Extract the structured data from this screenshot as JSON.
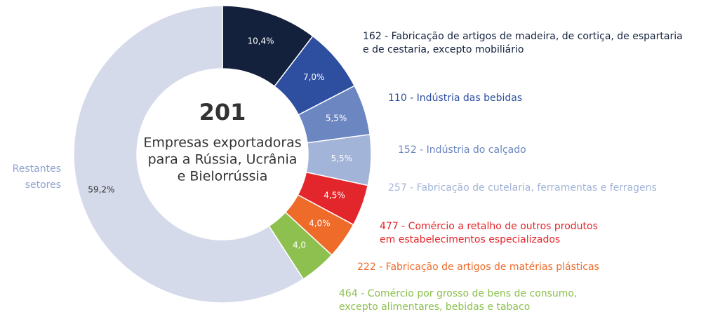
{
  "chart_data": {
    "type": "pie",
    "center_value": "201",
    "center_lines": [
      "Empresas exportadoras",
      "para a Rússia, Ucrânia",
      "e Bielorrússia"
    ],
    "categories": [
      [
        "162 - Fabricação de artigos de madeira, de cortiça, de espartaria",
        "e de cestaria, excepto mobiliário"
      ],
      [
        "110 - Indústria das bebidas"
      ],
      [
        "152 - Indústria do calçado"
      ],
      [
        "257 - Fabricação de cutelaria, ferramentas e ferragens"
      ],
      [
        "477 - Comércio a retalho de outros produtos",
        "em estabelecimentos especializados"
      ],
      [
        "222 - Fabricação de artigos de matérias plásticas"
      ],
      [
        "464 - Comércio por grosso de bens de consumo,",
        "excepto alimentares, bebidas e tabaco"
      ],
      [
        "Restantes",
        "setores"
      ]
    ],
    "values": [
      10.4,
      7.0,
      5.5,
      5.5,
      4.5,
      4.0,
      4.0,
      59.2
    ],
    "value_labels": [
      "10,4%",
      "7,0%",
      "5,5%",
      "5,5%",
      "4,5%",
      "4,0%",
      "4,0",
      "59,2%"
    ],
    "colors": [
      "#14213d",
      "#2e4fa0",
      "#6b86c0",
      "#a3b4d9",
      "#e3262b",
      "#ee6b2a",
      "#8dc04f",
      "#d5daea"
    ]
  }
}
